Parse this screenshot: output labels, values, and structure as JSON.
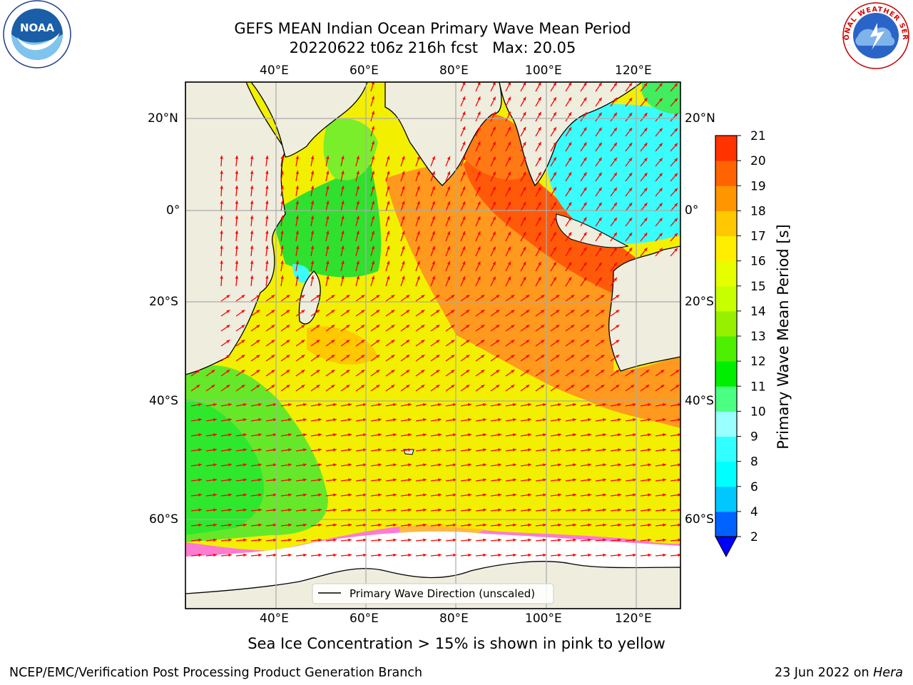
{
  "header": {
    "title_line1": "GEFS MEAN Indian Ocean Primary Wave Mean Period",
    "title_line2": "20220622 t06z 216h fcst   Max: 20.05"
  },
  "logos": {
    "noaa_text": "NOAA",
    "nws_text": "NATIONAL WEATHER SERVICE"
  },
  "map": {
    "lon_labels": [
      "40°E",
      "60°E",
      "80°E",
      "100°E",
      "120°E"
    ],
    "lat_labels": [
      "20°N",
      "0°",
      "20°S",
      "40°S",
      "60°S"
    ],
    "legend_label": "Primary Wave Direction (unscaled)",
    "land_color": "#efedde",
    "vector_color": "#ff0000"
  },
  "colorbar": {
    "label": "Primary Wave Mean Period [s]",
    "ticks": [
      "2",
      "4",
      "6",
      "8",
      "9",
      "10",
      "11",
      "12",
      "13",
      "14",
      "15",
      "16",
      "17",
      "18",
      "19",
      "20",
      "21"
    ],
    "colors": [
      "#0062ff",
      "#00c8ff",
      "#00ffff",
      "#32ffff",
      "#9affff",
      "#4bff82",
      "#00ee00",
      "#4df000",
      "#96f000",
      "#c8ff00",
      "#e6ff00",
      "#ffee00",
      "#ffc800",
      "#ff9600",
      "#ff6400",
      "#ff3200",
      "#ff0000"
    ],
    "under_color": "#0000ff"
  },
  "notes": {
    "sea_ice": "Sea Ice Concentration > 15% is shown in pink to yellow"
  },
  "footer": {
    "left": "NCEP/EMC/Verification Post Processing Product Generation Branch",
    "right_prefix": "23 Jun 2022 on ",
    "right_machine": "Hera"
  }
}
